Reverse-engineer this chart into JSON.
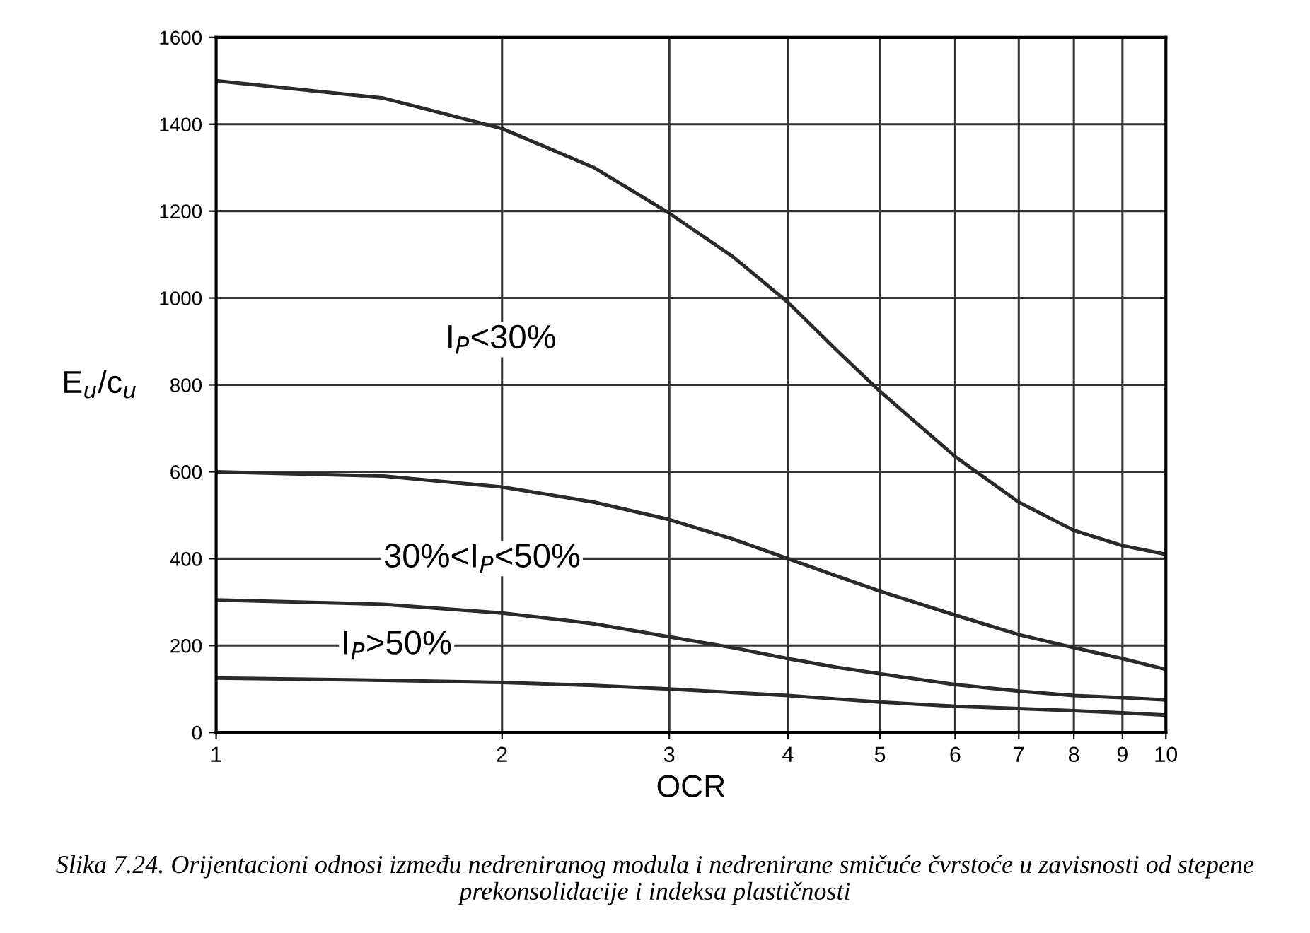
{
  "chart_data": {
    "type": "line",
    "xlabel": "OCR",
    "ylabel": "E$_{u}$/c$_{u}$",
    "log": "x",
    "xlim": [
      1,
      10
    ],
    "xticks": [
      1,
      2,
      3,
      4,
      5,
      6,
      7,
      8,
      9,
      10
    ],
    "ylim": [
      0,
      1600
    ],
    "yticks": [
      0,
      200,
      400,
      600,
      800,
      1000,
      1200,
      1400,
      1600
    ],
    "grid": true,
    "legend": false,
    "marker": "none",
    "line_style": "solid",
    "x": [
      1,
      1.5,
      2,
      2.5,
      3,
      3.5,
      4,
      4.5,
      5,
      6,
      7,
      8,
      9,
      10
    ],
    "series": [
      {
        "color": "#2a2a2a",
        "values": [
          1500,
          1460,
          1390,
          1300,
          1195,
          1095,
          990,
          880,
          785,
          635,
          530,
          465,
          430,
          410
        ]
      },
      {
        "color": "#2a2a2a",
        "values": [
          600,
          590,
          565,
          530,
          490,
          445,
          400,
          360,
          325,
          270,
          225,
          195,
          170,
          145
        ]
      },
      {
        "color": "#2a2a2a",
        "values": [
          305,
          295,
          275,
          250,
          220,
          195,
          170,
          150,
          135,
          110,
          95,
          85,
          80,
          75
        ]
      },
      {
        "color": "#2a2a2a",
        "values": [
          125,
          120,
          115,
          108,
          100,
          92,
          85,
          77,
          70,
          60,
          55,
          50,
          45,
          40
        ]
      }
    ],
    "annotations": [
      "I$_{P}$<30%",
      "30%<I$_{P}$<50%",
      "I$_{P}$>50%",
      "Slika 7.24. Orijentacioni odnosi između nedreniranog modula i nedrenirane smičuće čvrstoće u zavisnosti od stepene prekonsolidacije i indeksa plastičnosti"
    ]
  }
}
